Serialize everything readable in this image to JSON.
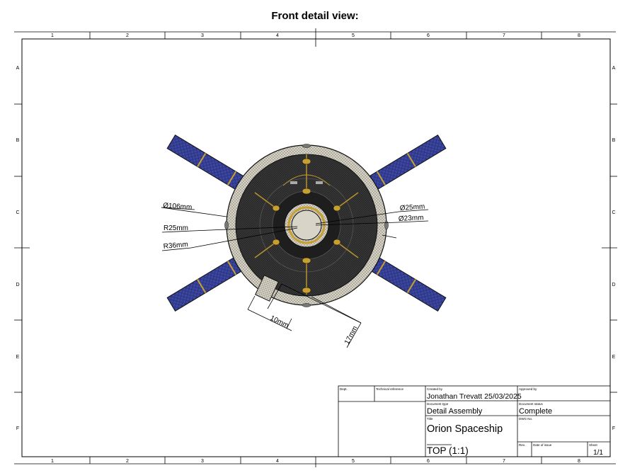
{
  "page": {
    "title": "Front detail view:"
  },
  "grid": {
    "columns": [
      "1",
      "2",
      "3",
      "4",
      "5",
      "6",
      "7",
      "8"
    ],
    "rows": [
      "A",
      "B",
      "C",
      "D",
      "E",
      "F"
    ]
  },
  "dimensions": {
    "d106": "Ø106mm",
    "r25": "R25mm",
    "r36": "R36mm",
    "d25": "Ø25mm",
    "d23": "Ø23mm",
    "len10": "10mm",
    "len17": "17mm"
  },
  "title_block": {
    "dept_label": "Dept.",
    "techref_label": "Technical reference",
    "created_by_label": "Created by",
    "created_by_value": "Jonathan Trevatt 25/03/2025",
    "approved_by_label": "Approved by",
    "doc_type_label": "Document type",
    "doc_type_value": "Detail Assembly",
    "doc_status_label": "Document status",
    "doc_status_value": "Complete",
    "title_label": "Title",
    "title_value": "Orion Spaceship",
    "dwg_label": "DWG No.",
    "view_value": "TOP (1:1)",
    "rev_label": "Rev.",
    "date_issue_label": "Date of issue",
    "sheet_label": "Sheet",
    "sheet_value": "1/1"
  },
  "colors": {
    "panel_blue": "#3b46a0",
    "panel_frame": "#c8a030",
    "hull_dark": "#2b2b2b",
    "rim_grey": "#c9c5b8",
    "accent_gold": "#b8922e"
  }
}
